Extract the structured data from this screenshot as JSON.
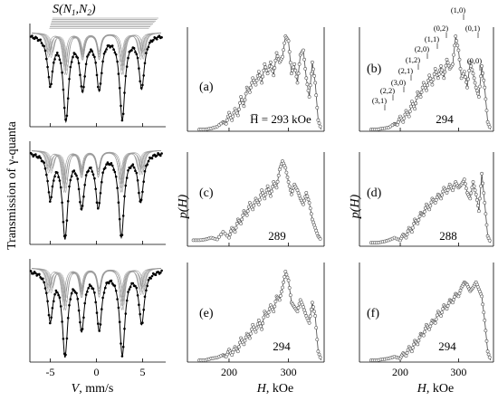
{
  "y_axis_label": "Transmission of γ-quanta",
  "mossbauer_x_label": "V, mm/s",
  "subspectra_label": "S(N",
  "subspectra_label_sub1": "1",
  "subspectra_label_mid": ",N",
  "subspectra_label_sub2": "2",
  "subspectra_label_end": ")",
  "ph_label": "p(H)",
  "h_label": "H, kOe",
  "hf_mean_label": "H̅ = 293 kOe",
  "chart_data": [
    {
      "type": "scatter",
      "panel": "mossbauer-1",
      "xlabel": "V, mm/s",
      "ylabel": "Transmission of γ-quanta",
      "xlim": [
        -7.5,
        7.5
      ],
      "x_ticks": [
        "-5",
        "0",
        "5"
      ],
      "x_tick_values": [
        -5,
        0,
        5
      ],
      "dips": [
        {
          "v": -5.0,
          "depth": 0.55
        },
        {
          "v": -3.3,
          "depth": 0.95
        },
        {
          "v": -1.5,
          "depth": 0.6
        },
        {
          "v": 0.3,
          "depth": 0.6
        },
        {
          "v": 2.8,
          "depth": 0.95
        },
        {
          "v": 4.9,
          "depth": 0.6
        }
      ]
    },
    {
      "type": "scatter",
      "panel": "mossbauer-2",
      "xlim": [
        -7.5,
        7.5
      ],
      "dips": [
        {
          "v": -5.0,
          "depth": 0.5
        },
        {
          "v": -3.4,
          "depth": 0.95
        },
        {
          "v": -1.6,
          "depth": 0.6
        },
        {
          "v": 0.2,
          "depth": 0.6
        },
        {
          "v": 2.7,
          "depth": 0.95
        },
        {
          "v": 4.8,
          "depth": 0.55
        }
      ]
    },
    {
      "type": "scatter",
      "panel": "mossbauer-3",
      "xlim": [
        -7.5,
        7.5
      ],
      "dips": [
        {
          "v": -5.0,
          "depth": 0.55
        },
        {
          "v": -3.4,
          "depth": 0.95
        },
        {
          "v": -1.6,
          "depth": 0.65
        },
        {
          "v": 0.3,
          "depth": 0.65
        },
        {
          "v": 2.8,
          "depth": 0.95
        },
        {
          "v": 4.9,
          "depth": 0.6
        }
      ]
    },
    {
      "type": "line",
      "panel": "a",
      "label": "(a)",
      "mean_text": "H̅ = 293 kOe",
      "xlabel": "H, kOe",
      "ylabel": "p(H)",
      "xlim": [
        130,
        360
      ],
      "h": [
        150,
        160,
        170,
        180,
        190,
        195,
        200,
        205,
        210,
        215,
        220,
        225,
        230,
        235,
        240,
        245,
        250,
        255,
        260,
        265,
        270,
        275,
        280,
        285,
        290,
        295,
        300,
        305,
        310,
        315,
        320,
        325,
        330,
        335,
        340,
        345,
        350,
        355
      ],
      "p": [
        0,
        0,
        0.01,
        0.03,
        0.08,
        0.06,
        0.18,
        0.1,
        0.22,
        0.15,
        0.35,
        0.25,
        0.45,
        0.4,
        0.55,
        0.48,
        0.62,
        0.5,
        0.7,
        0.6,
        0.72,
        0.58,
        0.82,
        0.72,
        0.78,
        1.0,
        0.95,
        0.6,
        0.7,
        0.5,
        0.8,
        0.85,
        0.55,
        0.35,
        0.72,
        0.5,
        0.1,
        0
      ]
    },
    {
      "type": "line",
      "panel": "b",
      "label": "(b)",
      "mean_text": "294",
      "xlim": [
        130,
        360
      ],
      "peak_labels": [
        "(3,1)",
        "(2,2)",
        "(3,0)",
        "(2,1)",
        "(1,2)",
        "(2,0)",
        "(1,1)",
        "(0,2)",
        "(1,0)",
        "(0,1)",
        "(0,0)"
      ],
      "h": [
        150,
        160,
        170,
        180,
        190,
        195,
        200,
        205,
        210,
        215,
        220,
        225,
        230,
        235,
        240,
        245,
        250,
        255,
        260,
        265,
        270,
        275,
        280,
        285,
        290,
        295,
        300,
        305,
        310,
        315,
        320,
        325,
        330,
        335,
        340,
        345,
        350,
        355
      ],
      "p": [
        0,
        0,
        0.01,
        0.02,
        0.06,
        0.05,
        0.14,
        0.08,
        0.2,
        0.14,
        0.3,
        0.22,
        0.4,
        0.35,
        0.5,
        0.42,
        0.58,
        0.48,
        0.65,
        0.55,
        0.68,
        0.55,
        0.75,
        0.65,
        0.7,
        1.0,
        0.85,
        0.55,
        0.62,
        0.45,
        0.72,
        0.6,
        0.45,
        0.35,
        0.68,
        0.45,
        0.08,
        0
      ]
    },
    {
      "type": "line",
      "panel": "c",
      "label": "(c)",
      "mean_text": "289",
      "ylabel": "p(H)",
      "xlim": [
        130,
        360
      ],
      "h": [
        140,
        150,
        160,
        170,
        180,
        190,
        200,
        205,
        210,
        215,
        220,
        225,
        230,
        235,
        240,
        245,
        250,
        255,
        260,
        265,
        270,
        275,
        280,
        285,
        290,
        295,
        300,
        305,
        310,
        315,
        320,
        325,
        330,
        335,
        340,
        345,
        350,
        355
      ],
      "p": [
        0.05,
        0.05,
        0.06,
        0.08,
        0.06,
        0.15,
        0.08,
        0.2,
        0.15,
        0.3,
        0.25,
        0.4,
        0.35,
        0.5,
        0.42,
        0.55,
        0.48,
        0.65,
        0.55,
        0.7,
        0.58,
        0.75,
        0.68,
        0.9,
        1.0,
        0.92,
        0.75,
        0.6,
        0.72,
        0.65,
        0.55,
        0.48,
        0.62,
        0.5,
        0.3,
        0.2,
        0.1,
        0.05
      ]
    },
    {
      "type": "line",
      "panel": "d",
      "label": "(d)",
      "mean_text": "288",
      "ylabel": "p(H)",
      "xlim": [
        130,
        360
      ],
      "h": [
        150,
        160,
        170,
        180,
        190,
        200,
        205,
        210,
        215,
        220,
        225,
        230,
        235,
        240,
        245,
        250,
        255,
        260,
        265,
        270,
        275,
        280,
        285,
        290,
        295,
        300,
        305,
        310,
        315,
        320,
        325,
        330,
        335,
        340,
        345,
        350,
        355
      ],
      "p": [
        0.02,
        0.02,
        0.03,
        0.05,
        0.08,
        0.05,
        0.12,
        0.08,
        0.2,
        0.15,
        0.3,
        0.25,
        0.38,
        0.35,
        0.48,
        0.42,
        0.55,
        0.5,
        0.6,
        0.55,
        0.68,
        0.62,
        0.72,
        0.65,
        0.75,
        0.68,
        0.72,
        0.78,
        0.62,
        0.55,
        0.75,
        0.6,
        0.4,
        0.85,
        0.5,
        0.1,
        0.02
      ]
    },
    {
      "type": "line",
      "panel": "e",
      "label": "(e)",
      "mean_text": "294",
      "xlabel": "H, kOe",
      "x_ticks": [
        "200",
        "300"
      ],
      "x_tick_values": [
        200,
        300
      ],
      "xlim": [
        130,
        360
      ],
      "h": [
        150,
        160,
        170,
        180,
        190,
        195,
        200,
        205,
        210,
        215,
        220,
        225,
        230,
        235,
        240,
        245,
        250,
        255,
        260,
        265,
        270,
        275,
        280,
        285,
        290,
        295,
        300,
        305,
        310,
        315,
        320,
        325,
        330,
        335,
        340,
        345,
        350,
        355
      ],
      "p": [
        0,
        0,
        0.02,
        0.03,
        0.06,
        0.04,
        0.12,
        0.06,
        0.15,
        0.1,
        0.25,
        0.18,
        0.3,
        0.25,
        0.4,
        0.32,
        0.45,
        0.35,
        0.55,
        0.5,
        0.62,
        0.55,
        0.72,
        0.68,
        0.82,
        1.0,
        0.9,
        0.65,
        0.6,
        0.55,
        0.68,
        0.6,
        0.5,
        0.42,
        0.65,
        0.5,
        0.1,
        0
      ]
    },
    {
      "type": "line",
      "panel": "f",
      "label": "(f)",
      "mean_text": "294",
      "xlabel": "H, kOe",
      "x_ticks": [
        "200",
        "300"
      ],
      "x_tick_values": [
        200,
        300
      ],
      "xlim": [
        130,
        360
      ],
      "h": [
        150,
        160,
        170,
        180,
        190,
        200,
        205,
        210,
        215,
        220,
        225,
        230,
        235,
        240,
        245,
        250,
        255,
        260,
        265,
        270,
        275,
        280,
        285,
        290,
        295,
        300,
        305,
        310,
        315,
        320,
        325,
        330,
        335,
        340,
        345,
        350,
        355
      ],
      "p": [
        0,
        0,
        0.01,
        0.02,
        0.04,
        0.02,
        0.08,
        0.05,
        0.15,
        0.1,
        0.22,
        0.18,
        0.3,
        0.28,
        0.4,
        0.35,
        0.45,
        0.42,
        0.55,
        0.5,
        0.62,
        0.58,
        0.68,
        0.65,
        0.75,
        0.72,
        0.82,
        0.88,
        0.85,
        0.78,
        0.82,
        0.88,
        0.8,
        0.72,
        0.45,
        0.1,
        0
      ]
    }
  ]
}
